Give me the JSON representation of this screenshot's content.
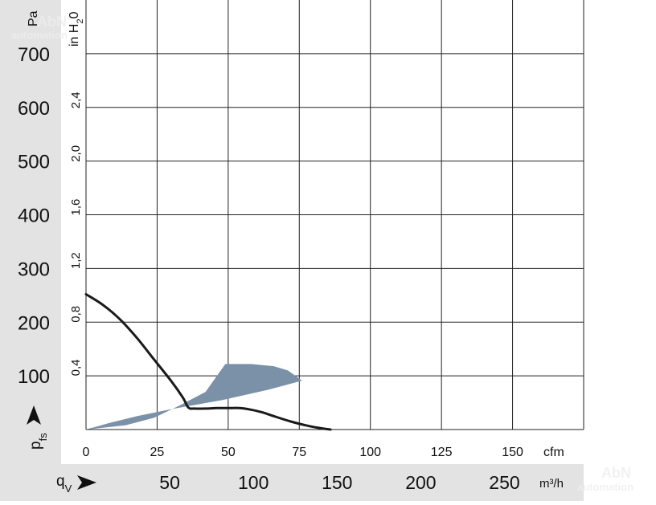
{
  "chart_data": {
    "type": "line",
    "title": "",
    "y_left": {
      "label": "Pa",
      "ticks": [
        100,
        200,
        300,
        400,
        500,
        600,
        700
      ],
      "range": [
        0,
        800
      ]
    },
    "y_right": {
      "label_main": "in H",
      "label_sub": "2",
      "label_tail": "0",
      "ticks": [
        "0,4",
        "0,8",
        "1,2",
        "1,6",
        "2,0",
        "2,4"
      ],
      "tick_values": [
        0.4,
        0.8,
        1.2,
        1.6,
        2.0,
        2.4
      ]
    },
    "y_symbol": {
      "main": "p",
      "sub": "fs"
    },
    "x_cfm": {
      "unit": "cfm",
      "ticks": [
        "0",
        "25",
        "50",
        "75",
        "100",
        "125",
        "150"
      ],
      "tick_values": [
        0,
        25,
        50,
        75,
        100,
        125,
        150
      ],
      "range": [
        0,
        175
      ]
    },
    "x_m3h": {
      "symbol_main": "q",
      "symbol_sub": "V",
      "unit": "m³/h",
      "ticks": [
        "50",
        "100",
        "150",
        "200",
        "250"
      ],
      "tick_values": [
        50,
        100,
        150,
        200,
        250
      ]
    },
    "grid": true,
    "series": [
      {
        "color": "#1a1a1a",
        "points": [
          [
            0,
            252
          ],
          [
            6,
            232
          ],
          [
            12,
            205
          ],
          [
            18,
            170
          ],
          [
            24,
            130
          ],
          [
            30,
            90
          ],
          [
            34,
            60
          ],
          [
            36,
            41
          ],
          [
            38,
            39
          ],
          [
            42,
            39
          ],
          [
            46,
            40
          ],
          [
            50,
            40
          ],
          [
            54,
            40
          ],
          [
            58,
            37
          ],
          [
            62,
            32
          ],
          [
            66,
            25
          ],
          [
            72,
            15
          ],
          [
            78,
            7
          ],
          [
            82,
            3
          ],
          [
            86,
            0
          ]
        ]
      }
    ],
    "operating_area": {
      "color": "#7a91a8",
      "points": [
        [
          0,
          0
        ],
        [
          14,
          8
        ],
        [
          24,
          22
        ],
        [
          33,
          45
        ],
        [
          42,
          70
        ],
        [
          49,
          122
        ],
        [
          58,
          122
        ],
        [
          66,
          118
        ],
        [
          71,
          110
        ],
        [
          76,
          91
        ],
        [
          64,
          74
        ],
        [
          48,
          55
        ],
        [
          30,
          38
        ],
        [
          18,
          25
        ],
        [
          8,
          12
        ],
        [
          2,
          3
        ],
        [
          0,
          0
        ]
      ]
    }
  },
  "watermark": {
    "line1": "AbN",
    "line2": "automation"
  }
}
